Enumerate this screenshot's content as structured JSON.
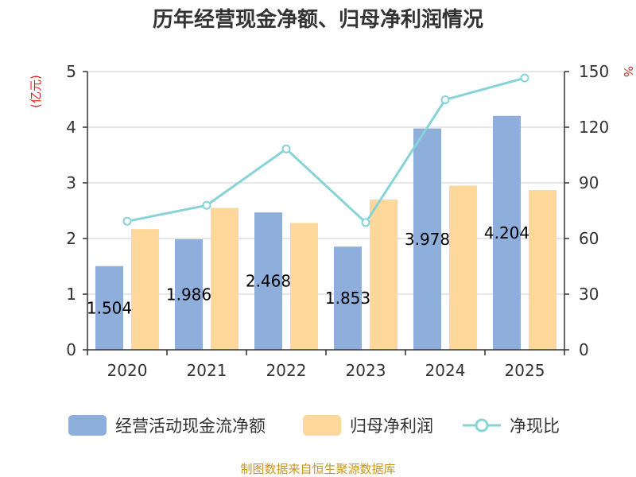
{
  "chart_data": {
    "type": "bar",
    "title": "历年经营现金净额、归母净利润情况",
    "categories": [
      "2020",
      "2021",
      "2022",
      "2023",
      "2024",
      "2025"
    ],
    "left_axis": {
      "unit": "(亿元)",
      "ylim": [
        0,
        5
      ],
      "ticks": [
        "0",
        "1",
        "2",
        "3",
        "4",
        "5"
      ]
    },
    "right_axis": {
      "unit": "%",
      "ylim": [
        0,
        150
      ],
      "ticks": [
        "0",
        "30",
        "60",
        "90",
        "120",
        "150"
      ]
    },
    "series": [
      {
        "name": "经营活动现金流净额",
        "type": "bar",
        "axis": "left",
        "color": "#8eaedb",
        "values": [
          1.504,
          1.986,
          2.468,
          1.853,
          3.978,
          4.204
        ],
        "labels": [
          "1.504",
          "1.986",
          "2.468",
          "1.853",
          "3.978",
          "4.204"
        ]
      },
      {
        "name": "归母净利润",
        "type": "bar",
        "axis": "left",
        "color": "#fdd89a",
        "values": [
          2.17,
          2.55,
          2.28,
          2.7,
          2.95,
          2.87
        ]
      },
      {
        "name": "净现比",
        "type": "line",
        "axis": "right",
        "color": "#86d3d8",
        "values": [
          69.3,
          77.9,
          108.3,
          68.6,
          134.8,
          146.5
        ]
      }
    ],
    "legend_position": "bottom",
    "grid": true
  },
  "source": "制图数据来自恒生聚源数据库"
}
